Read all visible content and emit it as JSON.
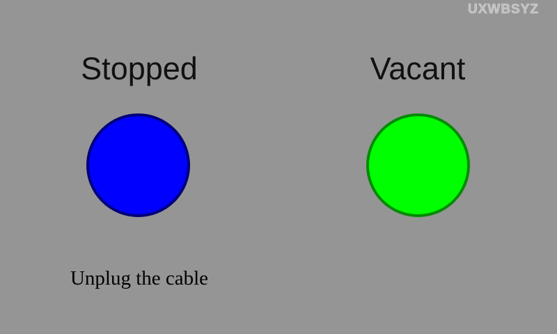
{
  "watermark": "UXWBSYZ",
  "left_panel": {
    "title": "Stopped",
    "indicator_fill": "#0000ff",
    "indicator_border": "#00007a",
    "message": "Unplug the cable"
  },
  "right_panel": {
    "title": "Vacant",
    "indicator_fill": "#00ff00",
    "indicator_border": "#058a05"
  },
  "colors": {
    "background": "#959595",
    "title_text": "#111111"
  }
}
